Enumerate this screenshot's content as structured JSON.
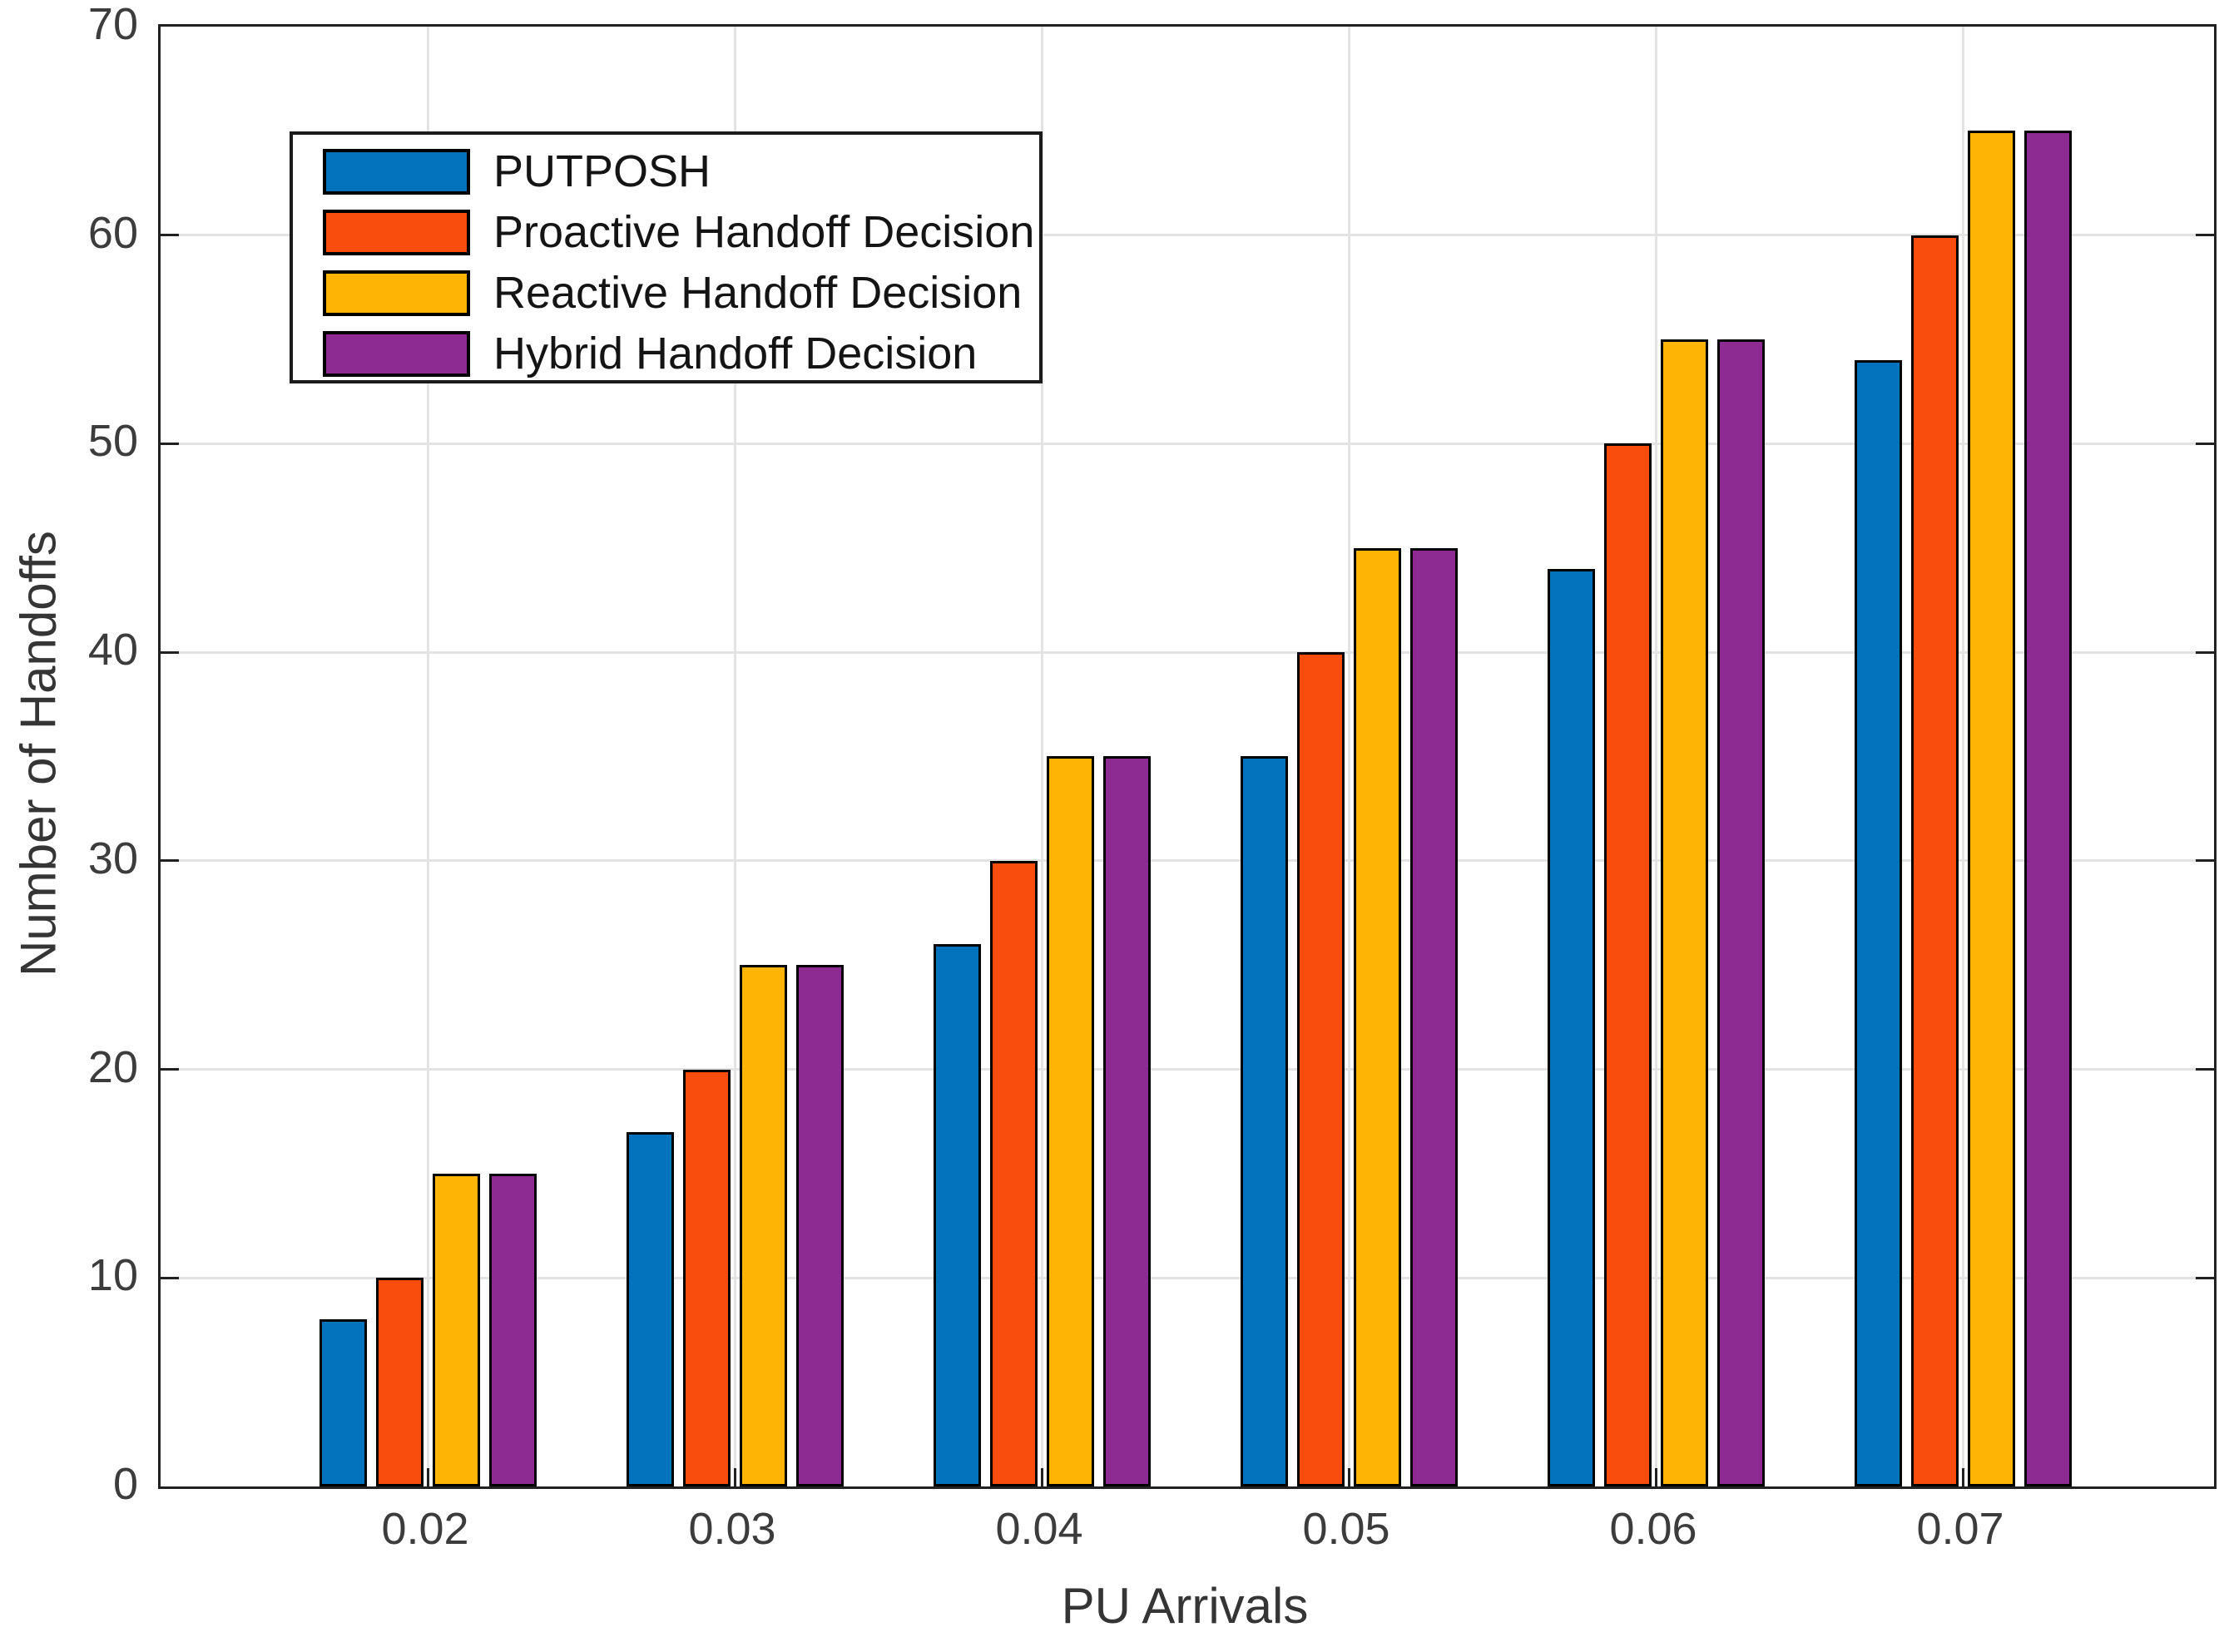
{
  "chart_data": {
    "type": "bar",
    "title": "",
    "xlabel": "PU Arrivals",
    "ylabel": "Number of Handoffs",
    "categories": [
      "0.02",
      "0.03",
      "0.04",
      "0.05",
      "0.06",
      "0.07"
    ],
    "series": [
      {
        "name": "PUTPOSH",
        "color": "#0473BE",
        "values": [
          8,
          17,
          26,
          35,
          44,
          54
        ]
      },
      {
        "name": "Proactive Handoff Decision",
        "color": "#F84D0D",
        "values": [
          10,
          20,
          30,
          40,
          50,
          60
        ]
      },
      {
        "name": "Reactive Handoff Decision",
        "color": "#FDB405",
        "values": [
          15,
          25,
          35,
          45,
          55,
          65
        ]
      },
      {
        "name": "Hybrid Handoff Decision",
        "color": "#8E2B92",
        "values": [
          15,
          25,
          35,
          45,
          55,
          65
        ]
      }
    ],
    "ylim": [
      0,
      70
    ],
    "yticks": [
      0,
      10,
      20,
      30,
      40,
      50,
      60,
      70
    ],
    "grid": true,
    "legend_position": "top-left",
    "colors": {
      "grid": "#E3E3E3",
      "frame": "#212121",
      "bar_edge": "#000000",
      "tick_text": "#3C3C3C",
      "label_text": "#353535",
      "background": "#FFFFFF"
    }
  }
}
